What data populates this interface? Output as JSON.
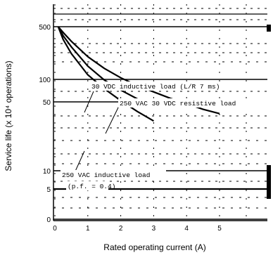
{
  "chart_data": {
    "type": "line",
    "title": "",
    "xlabel": "Rated operating current (A)",
    "ylabel": "Service life (x 10⁴ operations)",
    "xlim": [
      0,
      6
    ],
    "ylim": [
      0,
      600
    ],
    "x_ticks": [
      0,
      1,
      2,
      3,
      4,
      5
    ],
    "x_tick_labels": [
      "0",
      "1",
      "2",
      "3",
      "4",
      "5"
    ],
    "y_ticks": [
      0,
      5,
      10,
      50,
      100,
      500
    ],
    "y_tick_labels": [
      "0",
      "5",
      "10",
      "50",
      "100",
      "500"
    ],
    "grid": true,
    "series": [
      {
        "x": [
          0.1,
          0.25,
          0.5,
          1.0,
          1.5,
          2.0,
          2.5,
          3.0,
          3.5,
          4.0,
          4.5,
          5.0
        ],
        "y": [
          500,
          420,
          320,
          200,
          140,
          105,
          83,
          68,
          56,
          48,
          42,
          38
        ]
      },
      {
        "x": [
          0.1,
          0.25,
          0.5,
          1.0,
          1.5,
          2.0,
          2.5,
          3.0
        ],
        "y": [
          500,
          380,
          270,
          150,
          98,
          72,
          55,
          45
        ]
      },
      {
        "x": [
          0.1,
          0.25,
          0.5,
          1.0,
          1.5,
          2.0,
          2.5,
          3.0
        ],
        "y": [
          500,
          340,
          220,
          115,
          75,
          52,
          40,
          32
        ]
      }
    ],
    "annotations": [
      "30 VDC inductive load (L/R  7 ms)",
      "250 VAC 30 VDC resistive load",
      "250 VAC inductive load",
      "(p.f. = 0.4)"
    ]
  }
}
